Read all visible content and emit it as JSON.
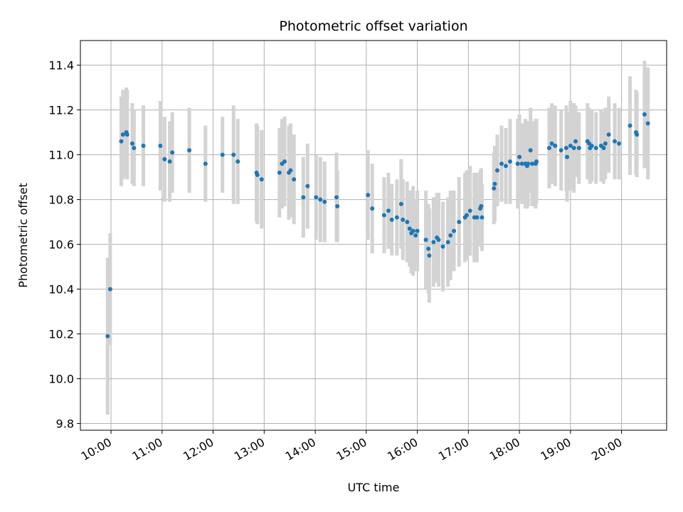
{
  "chart_data": {
    "type": "scatter",
    "title": "Photometric offset variation",
    "xlabel": "UTC time",
    "ylabel": "Photometric offset",
    "grid": true,
    "x_tick_labels": [
      "10:00",
      "11:00",
      "12:00",
      "13:00",
      "14:00",
      "15:00",
      "16:00",
      "17:00",
      "18:00",
      "19:00",
      "20:00"
    ],
    "y_tick_labels": [
      "9.8",
      "10.0",
      "10.2",
      "10.4",
      "10.6",
      "10.8",
      "11.0",
      "11.2",
      "11.4"
    ],
    "xlim": [
      "09:24",
      "20:53"
    ],
    "ylim": [
      9.77,
      11.51
    ],
    "colors": {
      "point": "#1f77b4",
      "errorbar": "#d3d3d3",
      "grid": "#b0b0b0"
    },
    "series": [
      {
        "x": [
          "09:56",
          "09:59",
          "10:12",
          "10:14",
          "10:18",
          "10:19",
          "10:25",
          "10:27",
          "10:38",
          "10:58",
          "11:03",
          "11:09",
          "11:12",
          "11:32",
          "11:51",
          "12:11",
          "12:24",
          "12:29",
          "12:51",
          "12:52",
          "12:57",
          "13:18",
          "13:21",
          "13:24",
          "13:29",
          "13:31",
          "13:35",
          "13:46",
          "13:51",
          "14:01",
          "14:06",
          "14:11",
          "14:25",
          "14:26",
          "15:02",
          "15:07",
          "15:21",
          "15:26",
          "15:30",
          "15:36",
          "15:41",
          "15:43",
          "15:48",
          "15:51",
          "15:53",
          "15:55",
          "15:58",
          "16:00",
          "16:10",
          "16:13",
          "16:14",
          "16:19",
          "16:23",
          "16:25",
          "16:30",
          "16:36",
          "16:39",
          "16:43",
          "16:49",
          "16:56",
          "16:58",
          "17:02",
          "17:07",
          "17:10",
          "17:14",
          "17:15",
          "17:16",
          "17:30",
          "17:31",
          "17:34",
          "17:39",
          "17:44",
          "17:49",
          "17:58",
          "18:00",
          "18:03",
          "18:07",
          "18:09",
          "18:10",
          "18:13",
          "18:15",
          "18:19",
          "18:20",
          "18:35",
          "18:38",
          "18:42",
          "18:49",
          "18:55",
          "18:56",
          "19:00",
          "19:04",
          "19:06",
          "19:10",
          "19:20",
          "19:22",
          "19:23",
          "19:25",
          "19:30",
          "19:36",
          "19:39",
          "19:41",
          "19:45",
          "19:52",
          "19:57",
          "20:10",
          "20:17",
          "20:18",
          "20:27",
          "20:31"
        ],
        "y": [
          10.19,
          10.4,
          11.06,
          11.09,
          11.1,
          11.09,
          11.05,
          11.03,
          11.04,
          11.04,
          10.98,
          10.97,
          11.01,
          11.02,
          10.96,
          11.0,
          11.0,
          10.97,
          10.92,
          10.91,
          10.89,
          10.92,
          10.96,
          10.97,
          10.92,
          10.93,
          10.89,
          10.81,
          10.86,
          10.81,
          10.8,
          10.79,
          10.81,
          10.77,
          10.82,
          10.76,
          10.73,
          10.75,
          10.71,
          10.72,
          10.78,
          10.71,
          10.7,
          10.67,
          10.65,
          10.66,
          10.64,
          10.66,
          10.62,
          10.58,
          10.55,
          10.61,
          10.63,
          10.62,
          10.59,
          10.61,
          10.64,
          10.66,
          10.7,
          10.72,
          10.73,
          10.75,
          10.72,
          10.72,
          10.76,
          10.77,
          10.72,
          10.85,
          10.87,
          10.93,
          10.96,
          10.95,
          10.97,
          10.96,
          10.99,
          10.96,
          10.96,
          10.95,
          10.96,
          11.02,
          10.96,
          10.96,
          10.97,
          11.03,
          11.05,
          11.04,
          11.02,
          11.03,
          10.99,
          11.04,
          11.03,
          11.06,
          11.03,
          11.06,
          11.05,
          11.03,
          11.04,
          11.03,
          11.04,
          11.03,
          11.05,
          11.09,
          11.06,
          11.05,
          11.13,
          11.1,
          11.09,
          11.18,
          11.14
        ],
        "yerr": [
          0.35,
          0.25,
          0.2,
          0.2,
          0.2,
          0.2,
          0.18,
          0.17,
          0.18,
          0.2,
          0.19,
          0.18,
          0.18,
          0.19,
          0.17,
          0.17,
          0.22,
          0.19,
          0.22,
          0.22,
          0.22,
          0.2,
          0.2,
          0.2,
          0.21,
          0.21,
          0.2,
          0.18,
          0.19,
          0.19,
          0.19,
          0.18,
          0.2,
          0.16,
          0.2,
          0.2,
          0.17,
          0.17,
          0.16,
          0.17,
          0.2,
          0.18,
          0.18,
          0.17,
          0.18,
          0.2,
          0.16,
          0.18,
          0.22,
          0.2,
          0.21,
          0.2,
          0.2,
          0.21,
          0.2,
          0.2,
          0.2,
          0.18,
          0.2,
          0.2,
          0.2,
          0.2,
          0.2,
          0.2,
          0.17,
          0.17,
          0.15,
          0.16,
          0.17,
          0.16,
          0.17,
          0.17,
          0.19,
          0.2,
          0.19,
          0.18,
          0.2,
          0.19,
          0.19,
          0.19,
          0.19,
          0.2,
          0.19,
          0.18,
          0.18,
          0.18,
          0.18,
          0.19,
          0.2,
          0.2,
          0.2,
          0.16,
          0.16,
          0.17,
          0.16,
          0.16,
          0.16,
          0.16,
          0.16,
          0.16,
          0.16,
          0.17,
          0.17,
          0.16,
          0.22,
          0.19,
          0.19,
          0.24,
          0.25
        ]
      }
    ]
  }
}
